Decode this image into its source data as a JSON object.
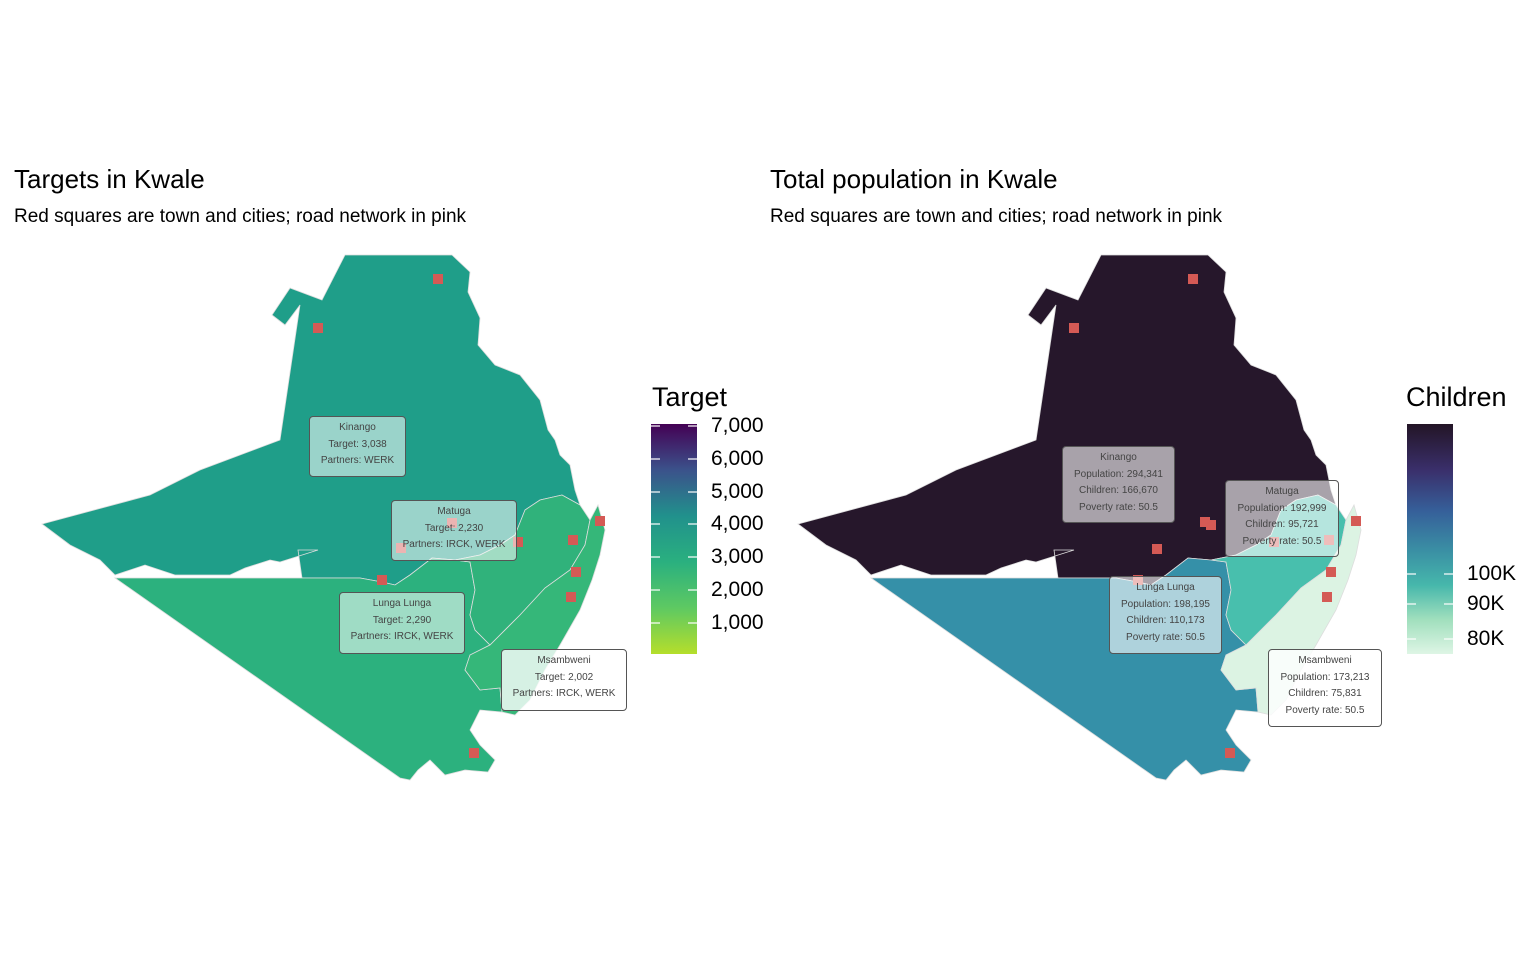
{
  "left_panel": {
    "title": "Targets in Kwale",
    "subtitle": "Red squares are town and cities; road network in pink",
    "legend": {
      "title": "Target",
      "ticks": [
        "7,000",
        "6,000",
        "5,000",
        "4,000",
        "3,000",
        "2,000",
        "1,000"
      ],
      "colors": [
        "#440154",
        "#3b528b",
        "#21918c",
        "#2ab07f",
        "#5ec962",
        "#b5de2b"
      ]
    },
    "regions": [
      {
        "name": "Kinango",
        "target": 3038,
        "color": "#1f9e89"
      },
      {
        "name": "Lunga Lunga",
        "target": 2290,
        "color": "#2cb17e"
      },
      {
        "name": "Matuga",
        "target": 2230,
        "color": "#30b27b"
      },
      {
        "name": "Msambweni",
        "target": 2002,
        "color": "#35b779"
      }
    ],
    "labels": [
      {
        "lines": [
          "Kinango",
          "Target: 3,038",
          "Partners: WERK"
        ],
        "fill": "rgba(255,255,255,0.55)"
      },
      {
        "lines": [
          "Matuga",
          "Target: 2,230",
          "Partners: IRCK, WERK"
        ],
        "fill": "rgba(255,255,255,0.55)"
      },
      {
        "lines": [
          "Lunga Lunga",
          "Target: 2,290",
          "Partners: IRCK, WERK"
        ],
        "fill": "rgba(255,255,255,0.55)"
      },
      {
        "lines": [
          "Msambweni",
          "Target: 2,002",
          "Partners: IRCK, WERK"
        ],
        "fill": "rgba(255,255,255,0.80)"
      }
    ]
  },
  "right_panel": {
    "title": "Total population in Kwale",
    "subtitle": "Red squares are town and cities; road network in pink",
    "legend": {
      "title": "Children",
      "ticks": [
        "100K",
        "90K",
        "80K"
      ],
      "colors": [
        "#231526",
        "#3a2f6b",
        "#36609a",
        "#3a8fa4",
        "#46b7ab",
        "#a0dfbd",
        "#def5e5"
      ]
    },
    "regions": [
      {
        "name": "Kinango",
        "population": 294341,
        "children": 166670,
        "poverty_rate": 50.5,
        "color": "#26172b"
      },
      {
        "name": "Lunga Lunga",
        "population": 198195,
        "children": 110173,
        "poverty_rate": 50.5,
        "color": "#3590a8"
      },
      {
        "name": "Matuga",
        "population": 192999,
        "children": 95721,
        "poverty_rate": 50.5,
        "color": "#48bfad"
      },
      {
        "name": "Msambweni",
        "population": 173213,
        "children": 75831,
        "poverty_rate": 50.5,
        "color": "#dcf3e3"
      }
    ],
    "labels": [
      {
        "lines": [
          "Kinango",
          "Population: 294,341",
          "Children: 166,670",
          "Poverty rate: 50.5"
        ],
        "fill": "rgba(255,255,255,0.60)"
      },
      {
        "lines": [
          "Matuga",
          "Population: 192,999",
          "Children: 95,721",
          "Poverty rate: 50.5"
        ],
        "fill": "rgba(255,255,255,0.60)"
      },
      {
        "lines": [
          "Lunga Lunga",
          "Population: 198,195",
          "Children: 110,173",
          "Poverty rate: 50.5"
        ],
        "fill": "rgba(255,255,255,0.60)"
      },
      {
        "lines": [
          "Msambweni",
          "Population: 173,213",
          "Children: 75,831",
          "Poverty rate: 50.5"
        ],
        "fill": "rgba(255,255,255,0.80)"
      }
    ]
  },
  "town_marker_color": "#d45a55",
  "region_border_color": "#dddddd"
}
